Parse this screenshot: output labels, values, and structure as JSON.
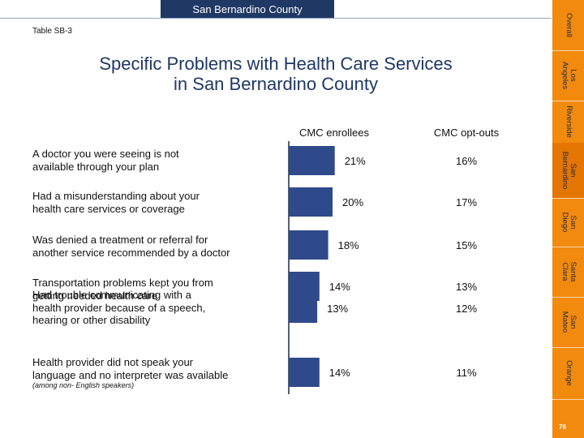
{
  "header": {
    "banner": "San Bernardino County",
    "table_label": "Table SB-3"
  },
  "title_line1": "Specific Problems with Health Care Services",
  "title_line2": "in San Bernardino County",
  "columns": {
    "enrollees": "CMC enrollees",
    "optouts": "CMC opt-outs"
  },
  "footnote": "(among non- English speakers)",
  "chart_data": {
    "type": "bar",
    "title": "Specific Problems with Health Care Services in San Bernardino County",
    "categories": [
      "A doctor you were seeing is not available through your plan",
      "Had a misunderstanding about your health care services or coverage",
      "Was denied a treatment or referral for another service recommended by a doctor",
      "Transportation problems kept you from getting needed health care",
      "Had trouble communicating with a health provider because of a speech, hearing or other disability",
      "Health provider did not speak your language and no interpreter was available"
    ],
    "series": [
      {
        "name": "CMC enrollees",
        "values": [
          21,
          20,
          18,
          14,
          13,
          14
        ],
        "labels": [
          "21%",
          "20%",
          "18%",
          "14%",
          "13%",
          "14%"
        ]
      },
      {
        "name": "CMC opt-outs",
        "values": [
          16,
          17,
          15,
          13,
          12,
          11
        ],
        "labels": [
          "16%",
          "17%",
          "15%",
          "13%",
          "12%",
          "11%"
        ]
      }
    ],
    "bar_color": "#2e4a8a"
  },
  "rows": [
    {
      "line1": "A doctor you were seeing is not",
      "line2": "available through your plan"
    },
    {
      "line1": "Had a misunderstanding about your",
      "line2": "health care services or coverage"
    },
    {
      "line1": "Was denied a treatment or referral for",
      "line2": "another service recommended by a doctor"
    },
    {
      "line1": "Transportation problems kept you from",
      "line2": "getting needed health care"
    },
    {
      "line1": "Had trouble communicating with a",
      "line2": "health provider because of a speech,",
      "line3": "hearing or other disability"
    },
    {
      "line1": "Health provider did not speak your",
      "line2": "language and no interpreter was available"
    }
  ],
  "sidebar": {
    "tabs": [
      {
        "label": "Overall"
      },
      {
        "label": "Los\nAngeles"
      },
      {
        "label": "Riverside"
      },
      {
        "label": "San\nBernardino"
      },
      {
        "label": "San\nDiego"
      },
      {
        "label": "Santa\nClara"
      },
      {
        "label": "San\nMateo"
      },
      {
        "label": "Orange"
      }
    ],
    "active_tab": "San Bernardino"
  },
  "page_number": "76"
}
